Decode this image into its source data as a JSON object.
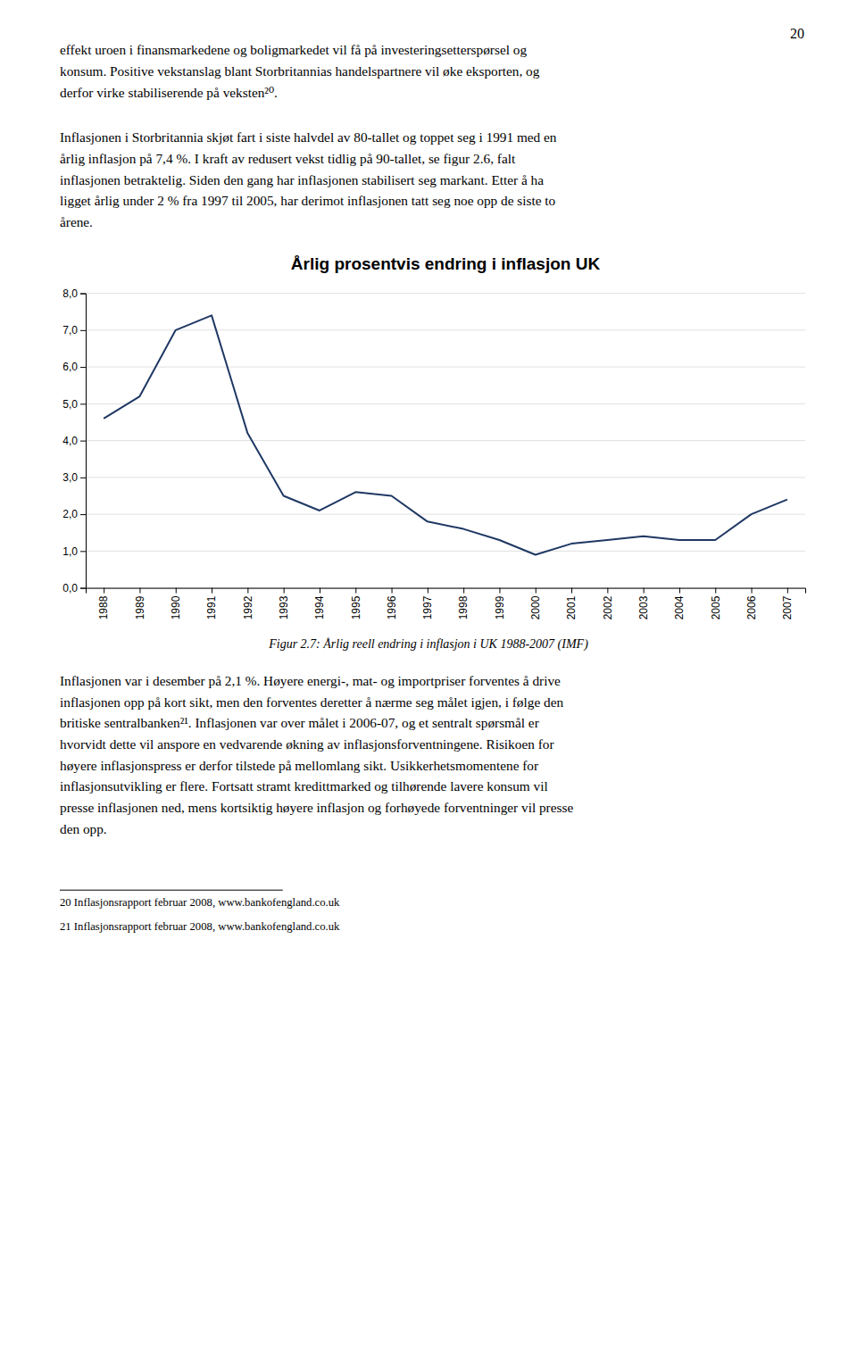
{
  "chart_data": {
    "type": "line",
    "title": "Årlig prosentvis endring i inflasjon UK",
    "x": [
      1988,
      1989,
      1990,
      1991,
      1992,
      1993,
      1994,
      1995,
      1996,
      1997,
      1998,
      1999,
      2000,
      2001,
      2002,
      2003,
      2004,
      2005,
      2006,
      2007
    ],
    "values": [
      4.6,
      5.2,
      7.0,
      7.4,
      4.2,
      2.5,
      2.1,
      2.6,
      2.5,
      1.8,
      1.6,
      1.3,
      0.9,
      1.2,
      1.3,
      1.4,
      1.3,
      1.3,
      2.0,
      2.4
    ],
    "color": "#1F3864",
    "xlim": [
      1987.5,
      2007.5
    ],
    "xticks": [
      1988,
      1989,
      1990,
      1991,
      1992,
      1993,
      1994,
      1995,
      1996,
      1997,
      1998,
      1999,
      2000,
      2001,
      2002,
      2003,
      2004,
      2005,
      2006,
      2007
    ],
    "ylim": [
      0.0,
      8.0
    ],
    "yticks": [
      {
        "value": 0.0,
        "label": "0,0"
      },
      {
        "value": 1.0,
        "label": "1,0"
      },
      {
        "value": 2.0,
        "label": "2,0"
      },
      {
        "value": 3.0,
        "label": "3,0"
      },
      {
        "value": 4.0,
        "label": "4,0"
      },
      {
        "value": 5.0,
        "label": "5,0"
      },
      {
        "value": 6.0,
        "label": "6,0"
      },
      {
        "value": 7.0,
        "label": "7,0"
      },
      {
        "value": 8.0,
        "label": "8,0"
      }
    ],
    "grid": true
  },
  "page": {
    "page_number": "20",
    "top_para1": [
      "effekt uroen i finansmarkedene og boligmarkedet vil få på investeringsetterspørsel og",
      "konsum. Positive vekstanslag blant Storbritannias handelspartnere vil øke eksporten, og",
      "derfor virke stabiliserende på veksten²⁰."
    ],
    "top_para2": [
      "Inflasjonen i Storbritannia skjøt fart i siste halvdel av 80-tallet og toppet seg i 1991 med en",
      "årlig inflasjon på 7,4 %. I kraft av redusert vekst tidlig på 90-tallet, se figur 2.6, falt",
      "inflasjonen betraktelig. Siden den gang har inflasjonen stabilisert seg markant. Etter å ha",
      "ligget årlig under 2 % fra 1997 til 2005, har derimot inflasjonen tatt seg noe opp de siste to",
      "årene."
    ],
    "caption": "Figur 2.7: Årlig reell endring i inflasjon i UK 1988-2007 (IMF)",
    "bottom_para": [
      "Inflasjonen var i desember på 2,1 %. Høyere energi-, mat- og importpriser forventes å drive",
      "inflasjonen opp på kort sikt, men den forventes deretter å nærme seg målet igjen, i følge den",
      "britiske sentralbanken²¹. Inflasjonen var over målet i 2006-07, og et sentralt spørsmål er",
      "hvorvidt dette vil anspore en vedvarende økning av inflasjonsforventningene. Risikoen for",
      "høyere inflasjonspress er derfor tilstede på mellomlang sikt. Usikkerhetsmomentene for",
      "inflasjonsutvikling er flere. Fortsatt stramt kredittmarked og tilhørende lavere konsum vil",
      "presse inflasjonen ned, mens kortsiktig høyere inflasjon og forhøyede forventninger vil presse",
      "den opp."
    ],
    "footnotes": [
      "20  Inflasjonsrapport februar 2008, www.bankofengland.co.uk",
      "21  Inflasjonsrapport februar 2008, www.bankofengland.co.uk"
    ]
  }
}
